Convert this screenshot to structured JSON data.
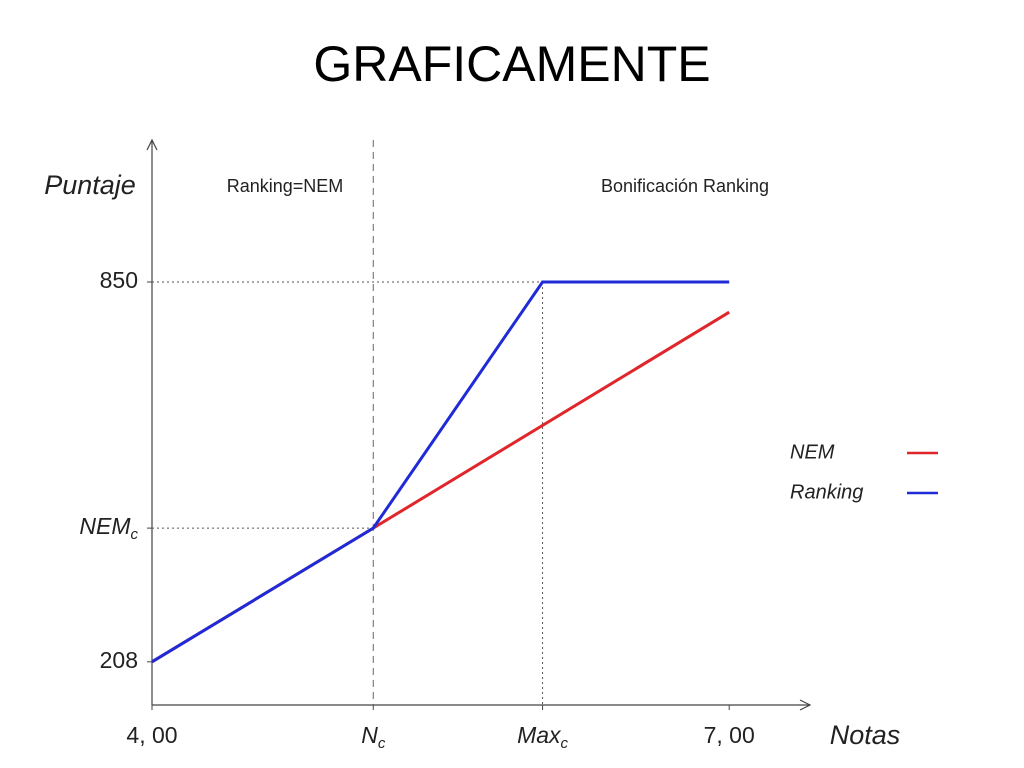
{
  "title": "GRAFICAMENTE",
  "chart_data": {
    "type": "line",
    "y_label": "Puntaje",
    "x_label": "Notas",
    "regions": [
      "Ranking=NEM",
      "Bonificación Ranking"
    ],
    "xlim": [
      4,
      7.42
    ],
    "ylim": [
      135,
      1090
    ],
    "xticks": [
      {
        "value": 4,
        "label": "4, 00"
      },
      {
        "value": 5.15,
        "label": "N",
        "label_sub": "c"
      },
      {
        "value": 6.03,
        "label": "Max",
        "label_sub": "c"
      },
      {
        "value": 7,
        "label": "7, 00"
      }
    ],
    "yticks": [
      208,
      {
        "value": 434,
        "label": "NEM",
        "label_sub": "c"
      },
      850
    ],
    "series": [
      {
        "name": "NEM",
        "color": "#e0262b",
        "x": [
          4,
          5.15,
          7
        ],
        "values": [
          208,
          434,
          799
        ]
      },
      {
        "name": "Ranking",
        "color": "#1f2bd6",
        "x": [
          4,
          5.15,
          6.03,
          7
        ],
        "values": [
          208,
          434,
          850,
          850
        ]
      }
    ]
  }
}
